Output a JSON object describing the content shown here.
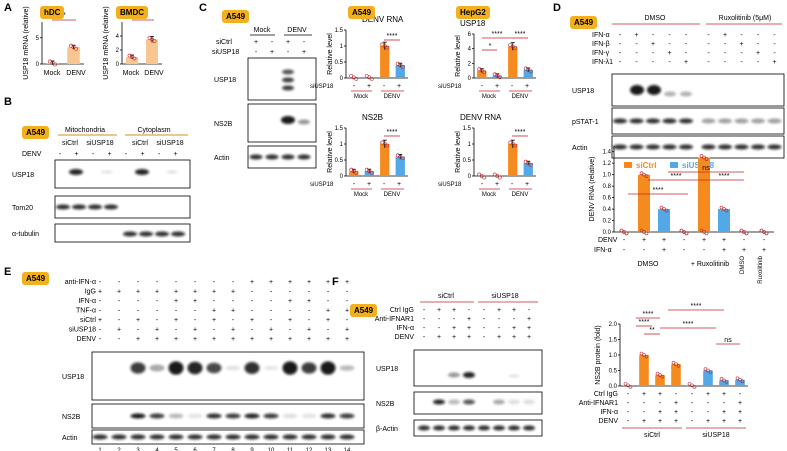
{
  "panels": {
    "A": {
      "label": "A",
      "hdc_badge": "hDC",
      "bmdc_badge": "BMDC",
      "hdc_ylabel": "USP18 mRNA (relative)",
      "bmdc_ylabel": "USP18 mRNA (relative)",
      "x_mock": "Mock",
      "x_denv": "DENV",
      "hdc_sig": "*",
      "bmdc_sig": "**"
    },
    "B": {
      "label": "B",
      "badge": "A549",
      "mito": "Mitochondria",
      "cyto": "Cytoplasm",
      "sictrl": "siCtrl",
      "siusp18": "siUSP18",
      "denv": "DENV",
      "rows": [
        "USP18",
        "Tom20",
        "α-tubulin"
      ]
    },
    "C": {
      "label": "C",
      "badge": "A549",
      "mock": "Mock",
      "denv": "DENV",
      "sictrl": "siCtrl",
      "siusp18": "siUSP18",
      "rows": [
        "USP18",
        "NS2B",
        "Actin"
      ],
      "a549_badge": "A549",
      "hepg2_badge": "HepG2",
      "t_denv_rna": "DENV RNA",
      "t_ns2b": "NS2B",
      "t_usp18": "USP18",
      "t_denv_rna2": "DENV RNA",
      "ylabel": "Relative level",
      "sig4": "****",
      "sig1": "*"
    },
    "D": {
      "label": "D",
      "badge": "A549",
      "dmso": "DMSO",
      "rux": "Ruxolitinib (5μM)",
      "treat": [
        "IFN-α",
        "IFN-β",
        "IFN-γ",
        "IFN-λ1"
      ],
      "rows": [
        "USP18",
        "pSTAT-1",
        "Actin"
      ],
      "legend_sictrl": "siCtrl",
      "legend_siusp18": "siUSP18",
      "ylabel": "DENV RNA (relative)",
      "x_denv": "DENV",
      "x_ifna": "IFN-α",
      "g_dmso": "DMSO",
      "g_rux": "+ Ruxolitinib",
      "g_dmso2": "DMSO",
      "g_rux2": "Ruxolitinib",
      "ns": "ns",
      "sig4": "****"
    },
    "E": {
      "label": "E",
      "badge": "A549",
      "treat": [
        "anti-IFN-α",
        "IgG",
        "IFN-α",
        "TNF-α",
        "siCtrl",
        "siUSP18",
        "DENV"
      ],
      "rows": [
        "USP18",
        "NS2B",
        "Actin"
      ],
      "lanes": [
        "1",
        "2",
        "3",
        "4",
        "5",
        "6",
        "7",
        "8",
        "9",
        "10",
        "11",
        "12",
        "13",
        "14"
      ]
    },
    "F": {
      "label": "F",
      "badge": "A549",
      "sictrl": "siCtrl",
      "siusp18": "siUSP18",
      "treat": [
        "Ctrl IgG",
        "Anti-IFNAR1",
        "IFN-α",
        "DENV"
      ],
      "rows": [
        "USP18",
        "NS2B",
        "β-Actin"
      ],
      "ylabel": "NS2B protein (fold)",
      "x_treat": [
        "Ctrl IgG",
        "Anti-IFNAR1",
        "IFN-α",
        "DENV"
      ],
      "x_sictrl": "siCtrl",
      "x_siusp18": "siUSP18",
      "sig4": "****",
      "sig2": "**",
      "ns": "ns"
    }
  },
  "colors": {
    "orange": "#f58a1f",
    "light_orange": "#f9c691",
    "blue": "#53a8e8",
    "badge": "#f2b01e",
    "sig_line": "#c0272d"
  },
  "chart_data": [
    {
      "type": "bar",
      "title": "hDC",
      "categories": [
        "Mock",
        "DENV"
      ],
      "values": [
        0.2,
        3.2
      ],
      "ylabel": "USP18 mRNA (relative)"
    },
    {
      "type": "bar",
      "title": "BMDC",
      "categories": [
        "Mock",
        "DENV"
      ],
      "values": [
        1.0,
        3.5
      ],
      "ylabel": "USP18 mRNA (relative)"
    },
    {
      "type": "bar",
      "title": "DENV RNA",
      "categories": [
        "Mock siCtrl",
        "Mock siUSP18",
        "DENV siCtrl",
        "DENV siUSP18"
      ],
      "values": [
        0.02,
        0.02,
        1.0,
        0.4
      ],
      "ylabel": "Relative level",
      "ylim": [
        0,
        1.5
      ]
    },
    {
      "type": "bar",
      "title": "NS2B",
      "categories": [
        "Mock siCtrl",
        "Mock siUSP18",
        "DENV siCtrl",
        "DENV siUSP18"
      ],
      "values": [
        0.15,
        0.15,
        1.0,
        0.6
      ],
      "ylabel": "Relative level",
      "ylim": [
        0,
        1.5
      ]
    },
    {
      "type": "bar",
      "title": "USP18",
      "categories": [
        "Mock siCtrl",
        "Mock siUSP18",
        "DENV siCtrl",
        "DENV siUSP18"
      ],
      "values": [
        1.0,
        0.3,
        4.3,
        1.1
      ],
      "ylabel": "Relative level",
      "ylim": [
        0,
        6
      ]
    },
    {
      "type": "bar",
      "title": "DENV RNA",
      "categories": [
        "Mock siCtrl",
        "Mock siUSP18",
        "DENV siCtrl",
        "DENV siUSP18"
      ],
      "values": [
        0.0,
        0.0,
        1.0,
        0.4
      ],
      "ylabel": "Relative level",
      "ylim": [
        0,
        1.5
      ]
    },
    {
      "type": "bar",
      "categories": [
        "DMSO -",
        "DMSO DENV",
        "DMSO DENV+IFN",
        "Rux -",
        "Rux DENV",
        "Rux DENV+IFN",
        "DMSO ctl",
        "Rux ctl"
      ],
      "series": [
        {
          "name": "siCtrl",
          "values": [
            0,
            1.0,
            0.05,
            0,
            1.3,
            0.05,
            0,
            0
          ]
        },
        {
          "name": "siUSP18",
          "values": [
            0,
            0,
            0.4,
            0,
            0,
            0.4,
            0,
            0
          ]
        }
      ],
      "ylabel": "DENV RNA (relative)",
      "ylim": [
        0,
        1.5
      ]
    },
    {
      "type": "bar",
      "categories": [
        "1",
        "2",
        "3",
        "4",
        "5",
        "6",
        "7",
        "8"
      ],
      "values": [
        0.02,
        1.0,
        0.35,
        0.7,
        0.02,
        0.5,
        0.18,
        0.2
      ],
      "ylabel": "NS2B protein (fold)",
      "ylim": [
        0,
        2.0
      ]
    }
  ]
}
